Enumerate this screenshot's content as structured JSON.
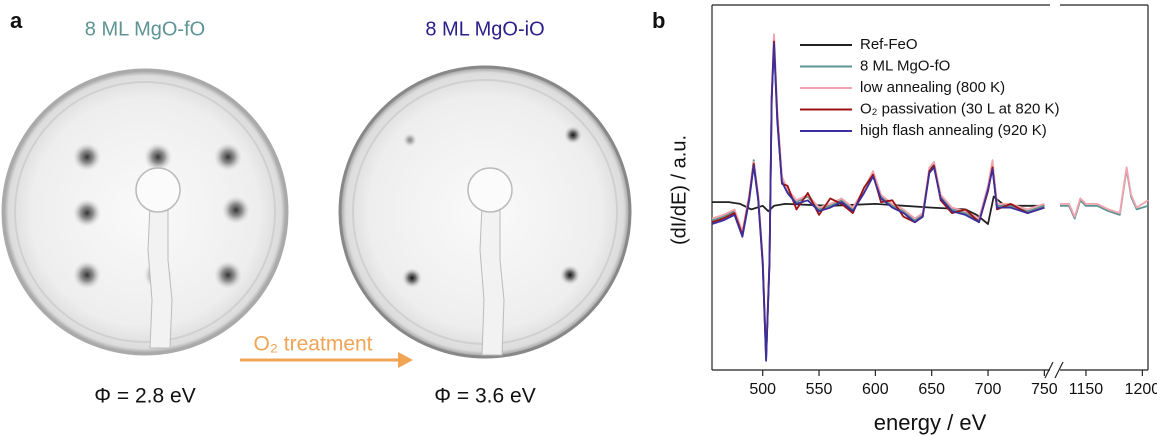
{
  "panel_a": {
    "label": "a",
    "left_title": "8 ML MgO-fO",
    "right_title": "8 ML MgO-iO",
    "left_caption": "Φ = 2.8 eV",
    "right_caption": "Φ = 3.6 eV",
    "arrow_label": "O₂ treatment"
  },
  "chart_data": {
    "type": "line",
    "panel_label": "b",
    "xlabel": "energy / eV",
    "ylabel": "(dI/dE) / a.u.",
    "xlim": [
      455,
      1205
    ],
    "axis_break": [
      755,
      1127
    ],
    "xticks": [
      500,
      550,
      600,
      650,
      700,
      750,
      1150,
      1200
    ],
    "ylim": [
      -9,
      11
    ],
    "series": [
      {
        "name": "Ref-FeO",
        "color": "#222222",
        "x": [
          455,
          470,
          480,
          490,
          500,
          505,
          510,
          520,
          560,
          600,
          650,
          680,
          690,
          700,
          705,
          715,
          750
        ],
        "values": [
          0.2,
          0.2,
          0.1,
          -0.2,
          0,
          -0.3,
          0,
          0.1,
          0,
          0.1,
          -0.1,
          -0.2,
          -0.5,
          -1,
          0.5,
          0,
          0
        ]
      },
      {
        "name": "8 ML MgO-fO",
        "color": "#5e9494",
        "x": [
          455,
          465,
          475,
          482,
          488,
          492,
          496,
          500,
          503,
          506,
          508,
          510,
          513,
          517,
          522,
          530,
          540,
          550,
          560,
          570,
          580,
          590,
          598,
          605,
          615,
          625,
          635,
          642,
          648,
          652,
          658,
          668,
          680,
          692,
          700,
          704,
          708,
          720,
          735,
          750,
          1127,
          1135,
          1140,
          1145,
          1150,
          1160,
          1170,
          1180,
          1186,
          1190,
          1195,
          1205
        ],
        "values": [
          -0.8,
          -0.6,
          -0.3,
          -1.5,
          0.5,
          2.5,
          0.5,
          -3,
          -8.4,
          -3,
          6,
          9.2,
          5,
          1.5,
          0.8,
          0.2,
          0.5,
          -0.2,
          0,
          0.3,
          -0.2,
          0.8,
          1.8,
          0.5,
          0,
          -0.3,
          -0.8,
          -0.5,
          2,
          2.3,
          0.5,
          -0.2,
          -0.4,
          -0.8,
          1,
          2.2,
          0,
          0,
          -0.3,
          0,
          0,
          0,
          -0.7,
          0.3,
          0,
          0,
          -0.3,
          -0.5,
          2,
          0.5,
          -0.2,
          0
        ]
      },
      {
        "name": "low annealing (800 K)",
        "color": "#f2a3ad",
        "x": [
          455,
          465,
          475,
          482,
          488,
          492,
          496,
          500,
          503,
          506,
          508,
          510,
          513,
          517,
          522,
          530,
          540,
          550,
          560,
          570,
          580,
          590,
          598,
          605,
          615,
          625,
          635,
          642,
          648,
          652,
          658,
          668,
          680,
          692,
          700,
          704,
          708,
          720,
          735,
          750,
          1127,
          1135,
          1140,
          1145,
          1150,
          1160,
          1170,
          1180,
          1186,
          1190,
          1195,
          1205
        ],
        "values": [
          -0.7,
          -0.5,
          -0.2,
          -1.4,
          0.6,
          2.4,
          0.6,
          -2.8,
          -8.2,
          -2.9,
          6.2,
          9.4,
          5.2,
          1.6,
          0.9,
          0.3,
          0.6,
          -0.1,
          0.1,
          0.4,
          -0.1,
          0.9,
          1.9,
          0.6,
          0.1,
          -0.2,
          -0.7,
          -0.4,
          2.1,
          2.4,
          0.6,
          -0.1,
          -0.3,
          -0.7,
          1.1,
          2.5,
          0.1,
          0.1,
          -0.2,
          0.1,
          0.1,
          0.1,
          -0.6,
          0.4,
          0.1,
          0.1,
          -0.2,
          -0.4,
          2.1,
          0.6,
          -0.1,
          0.3
        ]
      },
      {
        "name": "O₂ passivation (30 L at 820 K)",
        "color": "#9c1212",
        "x": [
          455,
          465,
          475,
          482,
          488,
          492,
          496,
          500,
          503,
          506,
          508,
          510,
          513,
          517,
          522,
          530,
          540,
          550,
          560,
          570,
          580,
          590,
          598,
          605,
          615,
          625,
          635,
          642,
          648,
          652,
          658,
          668,
          680,
          692,
          700,
          704,
          708,
          720,
          735,
          750
        ],
        "values": [
          -0.9,
          -0.7,
          -0.4,
          -1.6,
          0.4,
          2.3,
          0.4,
          -3.1,
          -8.3,
          -3.1,
          5.9,
          9,
          4.8,
          1.2,
          1.1,
          -0.2,
          0.7,
          -0.5,
          0.4,
          0.1,
          -0.4,
          1,
          1.7,
          0.2,
          0.3,
          -0.6,
          -0.9,
          -0.6,
          1.9,
          2.2,
          0.3,
          -0.4,
          -0.2,
          -0.9,
          0.8,
          2.1,
          -0.2,
          0.1,
          -0.4,
          -0.1
        ]
      },
      {
        "name": "high flash annealing (920 K)",
        "color": "#3b2f9c",
        "x": [
          455,
          465,
          475,
          482,
          488,
          492,
          496,
          500,
          503,
          506,
          508,
          510,
          513,
          517,
          522,
          530,
          540,
          550,
          560,
          570,
          580,
          590,
          598,
          605,
          615,
          625,
          635,
          642,
          648,
          652,
          658,
          668,
          680,
          692,
          700,
          704,
          708,
          720,
          735,
          750
        ],
        "values": [
          -1,
          -0.8,
          -0.5,
          -1.7,
          0.3,
          2.2,
          0.3,
          -3.2,
          -8.5,
          -3.2,
          5.8,
          8.9,
          4.6,
          1.3,
          0.7,
          0.1,
          0.3,
          -0.3,
          -0.1,
          0.2,
          -0.3,
          0.7,
          1.6,
          0.4,
          -0.1,
          -0.4,
          -0.9,
          -0.6,
          1.8,
          2.1,
          0.4,
          -0.3,
          -0.5,
          -0.9,
          0.9,
          2,
          -0.1,
          -0.1,
          -0.4,
          -0.1
        ]
      }
    ]
  }
}
